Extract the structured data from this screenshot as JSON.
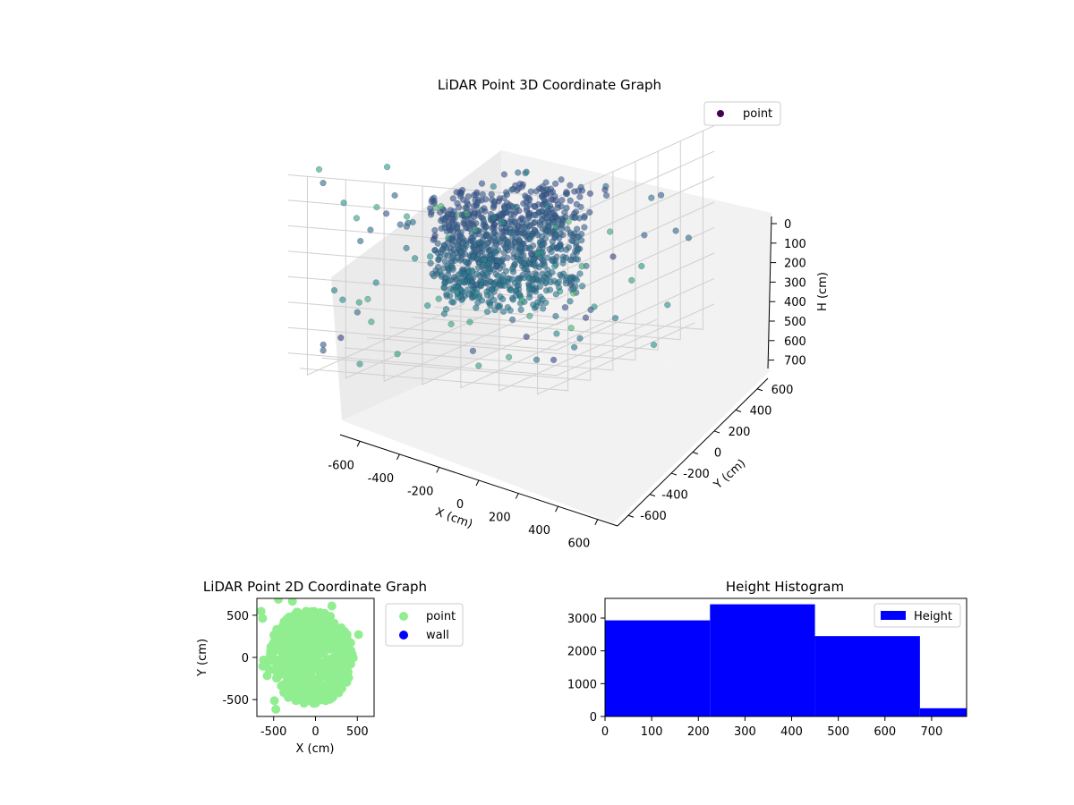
{
  "chart_data": [
    {
      "type": "scatter",
      "projection": "3d",
      "title": "LiDAR Point 3D Coordinate Graph",
      "xlabel": "X (cm)",
      "ylabel": "Y (cm)",
      "zlabel": "H (cm)",
      "xlim": [
        -700,
        700
      ],
      "ylim": [
        -700,
        700
      ],
      "zlim": [
        0,
        780
      ],
      "z_inverted": true,
      "x_ticks": [
        "-600",
        "-400",
        "-200",
        "0",
        "200",
        "400",
        "600"
      ],
      "y_ticks": [
        "-600",
        "-400",
        "-200",
        "0",
        "200",
        "400",
        "600"
      ],
      "z_ticks": [
        "0",
        "100",
        "200",
        "300",
        "400",
        "500",
        "600",
        "700"
      ],
      "colormap": "viridis",
      "grid": true,
      "legend": {
        "position": "top-right",
        "entries": [
          "point"
        ]
      },
      "series": [
        {
          "name": "point",
          "color": "#440154",
          "approx_point_count": 8800
        }
      ]
    },
    {
      "type": "scatter",
      "title": "LiDAR Point 2D Coordinate Graph",
      "xlabel": "X (cm)",
      "ylabel": "Y (cm)",
      "xlim": [
        -700,
        700
      ],
      "ylim": [
        -700,
        700
      ],
      "x_ticks": [
        "-500",
        "0",
        "500"
      ],
      "y_ticks": [
        "-500",
        "0",
        "500"
      ],
      "grid": false,
      "legend": {
        "position": "outside-right",
        "entries": [
          "point",
          "wall"
        ]
      },
      "series": [
        {
          "name": "point",
          "color": "#90ee90"
        },
        {
          "name": "wall",
          "color": "#0000ff"
        }
      ]
    },
    {
      "type": "bar",
      "subtype": "histogram",
      "title": "Height Histogram",
      "xlabel": "",
      "ylabel": "",
      "bins": [
        [
          0,
          225
        ],
        [
          225,
          450
        ],
        [
          450,
          675
        ],
        [
          675,
          780
        ]
      ],
      "values": [
        2930,
        3420,
        2450,
        250
      ],
      "xlim": [
        0,
        775
      ],
      "ylim": [
        0,
        3600
      ],
      "x_ticks": [
        "0",
        "100",
        "200",
        "300",
        "400",
        "500",
        "600",
        "700"
      ],
      "y_ticks": [
        "0",
        "1000",
        "2000",
        "3000"
      ],
      "grid": false,
      "legend": {
        "position": "top-right",
        "entries": [
          "Height"
        ]
      },
      "series": [
        {
          "name": "Height",
          "color": "#0000ff"
        }
      ]
    }
  ]
}
